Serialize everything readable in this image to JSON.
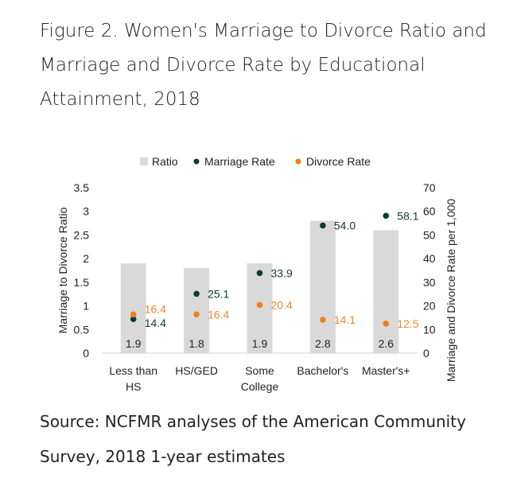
{
  "title": "Figure 2. Women's Marriage to Divorce Ratio and Marriage and Divorce Rate by Educational Attainment, 2018",
  "source": "Source: NCFMR analyses of the American Community Survey, 2018 1-year estimates",
  "chart_data": {
    "type": "bar",
    "categories": [
      [
        "Less than",
        "HS"
      ],
      [
        "HS/GED"
      ],
      [
        "Some",
        "College"
      ],
      [
        "Bachelor's"
      ],
      [
        "Master's+"
      ]
    ],
    "series": [
      {
        "name": "Ratio",
        "axis": "left",
        "kind": "bar",
        "color": "#d9d9d9",
        "values": [
          1.9,
          1.8,
          1.9,
          2.8,
          2.6
        ],
        "labels": [
          "1.9",
          "1.8",
          "1.9",
          "2.8",
          "2.6"
        ]
      },
      {
        "name": "Marriage Rate",
        "axis": "right",
        "kind": "scatter",
        "color": "#0d3b35",
        "values": [
          14.4,
          25.1,
          33.9,
          54.0,
          58.1
        ],
        "labels": [
          "14.4",
          "25.1",
          "33.9",
          "54.0",
          "58.1"
        ]
      },
      {
        "name": "Divorce Rate",
        "axis": "right",
        "kind": "scatter",
        "color": "#f07f1b",
        "values": [
          16.4,
          16.4,
          20.4,
          14.1,
          12.5
        ],
        "labels": [
          "16.4",
          "16.4",
          "20.4",
          "14.1",
          "12.5"
        ]
      }
    ],
    "ylabel": "Marriage to Divorce Ratio",
    "ylim": [
      0,
      3.5
    ],
    "yticks": [
      "0",
      "0.5",
      "1",
      "1.5",
      "2",
      "2.5",
      "3",
      "3.5"
    ],
    "y2label": "Marriage and Divorce Rate per 1,000",
    "y2lim": [
      0,
      70
    ],
    "y2ticks": [
      "0",
      "10",
      "20",
      "30",
      "40",
      "50",
      "60",
      "70"
    ],
    "legend": "top",
    "grid": false
  }
}
